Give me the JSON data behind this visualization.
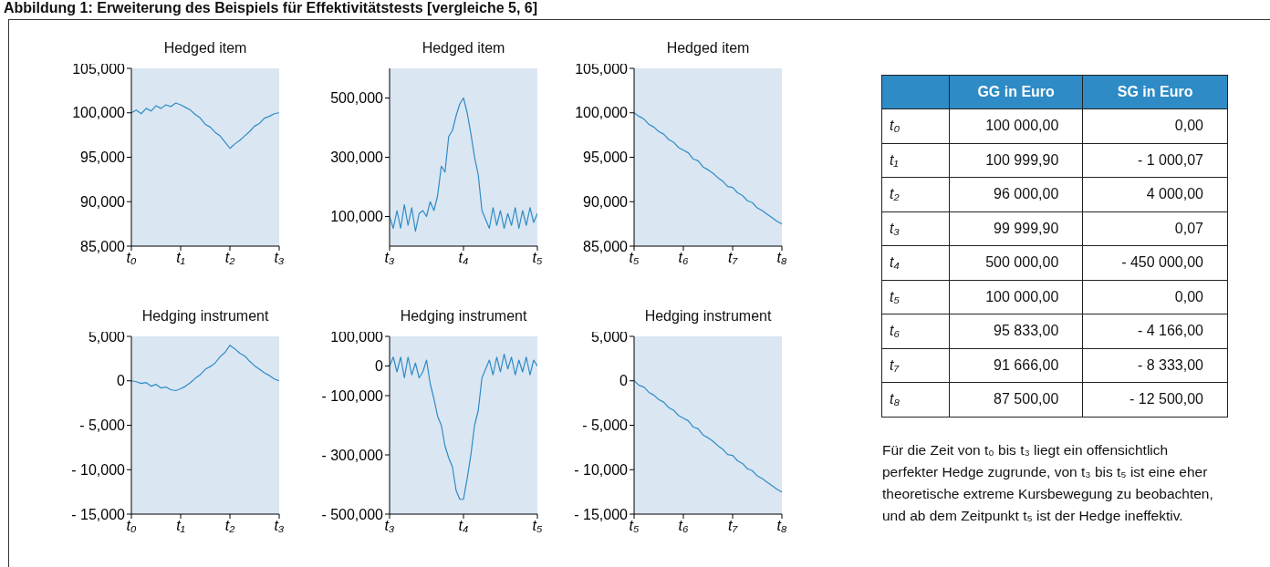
{
  "chart_data": [
    {
      "type": "other",
      "title": "Abbildung 1: Erweiterung des Beispiels für Effektivitätstests [vergleiche 5, 6]"
    },
    {
      "type": "line",
      "title": "Hedged item",
      "color": "#2e8bc6",
      "categories": [
        "t₀",
        null,
        null,
        null,
        null,
        null,
        null,
        null,
        null,
        null,
        "t₁",
        null,
        null,
        null,
        null,
        null,
        null,
        null,
        null,
        null,
        "t₂",
        null,
        null,
        null,
        null,
        null,
        null,
        null,
        null,
        null,
        "t₃"
      ],
      "values": [
        100000,
        100300,
        99900,
        100500,
        100200,
        100800,
        100500,
        100900,
        100700,
        101100,
        100900,
        100600,
        100300,
        99800,
        99400,
        98700,
        98400,
        97800,
        97400,
        96700,
        96000,
        96500,
        96900,
        97400,
        97900,
        98500,
        98800,
        99400,
        99600,
        99900,
        100000
      ],
      "ylim": [
        85000,
        105000
      ],
      "yticks": [
        {
          "value": 85000,
          "label": "85,000"
        },
        {
          "value": 90000,
          "label": "90,000"
        },
        {
          "value": 95000,
          "label": "95,000"
        },
        {
          "value": 100000,
          "label": "100,000"
        },
        {
          "value": 105000,
          "label": "105,000"
        }
      ]
    },
    {
      "type": "line",
      "title": "Hedged item",
      "color": "#2e8bc6",
      "categories": [
        "t₃",
        null,
        null,
        null,
        null,
        null,
        null,
        null,
        null,
        null,
        null,
        null,
        null,
        null,
        null,
        null,
        null,
        null,
        null,
        null,
        "t₄",
        null,
        null,
        null,
        null,
        null,
        null,
        null,
        null,
        null,
        null,
        null,
        null,
        null,
        null,
        null,
        null,
        null,
        null,
        null,
        "t₅"
      ],
      "values": [
        100000,
        60000,
        120000,
        60000,
        140000,
        70000,
        130000,
        50000,
        110000,
        120000,
        100000,
        150000,
        120000,
        170000,
        270000,
        250000,
        370000,
        390000,
        440000,
        480000,
        500000,
        450000,
        380000,
        300000,
        240000,
        120000,
        90000,
        60000,
        130000,
        70000,
        120000,
        60000,
        110000,
        70000,
        130000,
        60000,
        120000,
        70000,
        130000,
        80000,
        110000
      ],
      "ylim": [
        0,
        600000
      ],
      "yticks": [
        {
          "value": 100000,
          "label": "100,000"
        },
        {
          "value": 300000,
          "label": "300,000"
        },
        {
          "value": 500000,
          "label": "500,000"
        }
      ]
    },
    {
      "type": "line",
      "title": "Hedged item",
      "color": "#2e8bc6",
      "categories": [
        "t₅",
        null,
        null,
        null,
        null,
        null,
        null,
        null,
        null,
        null,
        "t₆",
        null,
        null,
        null,
        null,
        null,
        null,
        null,
        null,
        null,
        "t₇",
        null,
        null,
        null,
        null,
        null,
        null,
        null,
        null,
        null,
        "t₈"
      ],
      "values": [
        100000,
        99600,
        99300,
        98700,
        98400,
        97900,
        97600,
        97000,
        96700,
        96100,
        95800,
        95500,
        94800,
        94600,
        93900,
        93600,
        93200,
        92700,
        92300,
        91700,
        91600,
        91000,
        90700,
        90100,
        89900,
        89300,
        89000,
        88600,
        88200,
        87800,
        87500
      ],
      "ylim": [
        85000,
        105000
      ],
      "yticks": [
        {
          "value": 85000,
          "label": "85,000"
        },
        {
          "value": 90000,
          "label": "90,000"
        },
        {
          "value": 95000,
          "label": "95,000"
        },
        {
          "value": 100000,
          "label": "100,000"
        },
        {
          "value": 105000,
          "label": "105,000"
        }
      ]
    },
    {
      "type": "line",
      "title": "Hedging instrument",
      "color": "#2e8bc6",
      "categories": [
        "t₀",
        null,
        null,
        null,
        null,
        null,
        null,
        null,
        null,
        null,
        "t₁",
        null,
        null,
        null,
        null,
        null,
        null,
        null,
        null,
        null,
        "t₂",
        null,
        null,
        null,
        null,
        null,
        null,
        null,
        null,
        null,
        "t₃"
      ],
      "values": [
        0,
        -100,
        -300,
        -200,
        -600,
        -400,
        -800,
        -700,
        -1000,
        -1100,
        -900,
        -600,
        -200,
        300,
        700,
        1300,
        1600,
        2000,
        2700,
        3200,
        4000,
        3600,
        3100,
        2800,
        2200,
        1700,
        1300,
        900,
        600,
        200,
        0
      ],
      "ylim": [
        -15000,
        5000
      ],
      "yticks": [
        {
          "value": -15000,
          "label": "- 15,000"
        },
        {
          "value": -10000,
          "label": "- 10,000"
        },
        {
          "value": -5000,
          "label": "- 5,000"
        },
        {
          "value": 0,
          "label": "0"
        },
        {
          "value": 5000,
          "label": "5,000"
        }
      ]
    },
    {
      "type": "line",
      "title": "Hedging instrument",
      "color": "#2e8bc6",
      "categories": [
        "t₃",
        null,
        null,
        null,
        null,
        null,
        null,
        null,
        null,
        null,
        null,
        null,
        null,
        null,
        null,
        null,
        null,
        null,
        null,
        null,
        "t₄",
        null,
        null,
        null,
        null,
        null,
        null,
        null,
        null,
        null,
        null,
        null,
        null,
        null,
        null,
        null,
        null,
        null,
        null,
        null,
        "t₅"
      ],
      "values": [
        0,
        30000,
        -20000,
        30000,
        -40000,
        30000,
        -30000,
        10000,
        -40000,
        -20000,
        20000,
        -60000,
        -110000,
        -170000,
        -200000,
        -270000,
        -310000,
        -340000,
        -420000,
        -450000,
        -450000,
        -380000,
        -300000,
        -200000,
        -150000,
        -40000,
        -10000,
        20000,
        -30000,
        30000,
        -20000,
        40000,
        -10000,
        30000,
        -30000,
        20000,
        -20000,
        30000,
        -30000,
        20000,
        0
      ],
      "ylim": [
        -500000,
        100000
      ],
      "yticks": [
        {
          "value": -500000,
          "label": "- 500,000"
        },
        {
          "value": -300000,
          "label": "- 300,000"
        },
        {
          "value": -100000,
          "label": "- 100,000"
        },
        {
          "value": 0,
          "label": "0"
        },
        {
          "value": 100000,
          "label": "100,000"
        }
      ]
    },
    {
      "type": "line",
      "title": "Hedging instrument",
      "color": "#2e8bc6",
      "categories": [
        "t₅",
        null,
        null,
        null,
        null,
        null,
        null,
        null,
        null,
        null,
        "t₆",
        null,
        null,
        null,
        null,
        null,
        null,
        null,
        null,
        null,
        "t₇",
        null,
        null,
        null,
        null,
        null,
        null,
        null,
        null,
        null,
        "t₈"
      ],
      "values": [
        0,
        -500,
        -700,
        -1300,
        -1600,
        -2100,
        -2400,
        -3000,
        -3300,
        -3900,
        -4200,
        -4500,
        -5200,
        -5400,
        -6100,
        -6400,
        -6800,
        -7300,
        -7700,
        -8300,
        -8400,
        -9000,
        -9300,
        -9900,
        -10100,
        -10700,
        -11000,
        -11400,
        -11800,
        -12200,
        -12500
      ],
      "ylim": [
        -15000,
        5000
      ],
      "yticks": [
        {
          "value": -15000,
          "label": "- 15,000"
        },
        {
          "value": -10000,
          "label": "- 10,000"
        },
        {
          "value": -5000,
          "label": "- 5,000"
        },
        {
          "value": 0,
          "label": "0"
        },
        {
          "value": 5000,
          "label": "5,000"
        }
      ]
    },
    {
      "type": "other",
      "categories": [
        null,
        "GG in Euro",
        "SG in Euro"
      ],
      "y_categories": [
        "t₀",
        "t₁",
        "t₂",
        "t₃",
        "t₄",
        "t₅",
        "t₆",
        "t₇",
        "t₈"
      ],
      "cell_labels": [
        [
          "100 000,00",
          "0,00"
        ],
        [
          "100 999,90",
          "- 1 000,07"
        ],
        [
          "96 000,00",
          "4 000,00"
        ],
        [
          "99 999,90",
          "0,07"
        ],
        [
          "500 000,00",
          "- 450 000,00"
        ],
        [
          "100 000,00",
          "0,00"
        ],
        [
          "95 833,00",
          "- 4 166,00"
        ],
        [
          "91 666,00",
          "- 8 333,00"
        ],
        [
          "87 500,00",
          "- 12 500,00"
        ]
      ],
      "color": "#2e8bc6",
      "annotations": [
        "Für die Zeit von t₀ bis t₃ liegt ein offensichtlich perfekter Hedge zugrunde, von t₃ bis t₅ ist eine eher theoretische extreme Kursbewegung zu beobachten, und ab dem Zeitpunkt t₅ ist der Hedge ineffektiv."
      ]
    }
  ]
}
